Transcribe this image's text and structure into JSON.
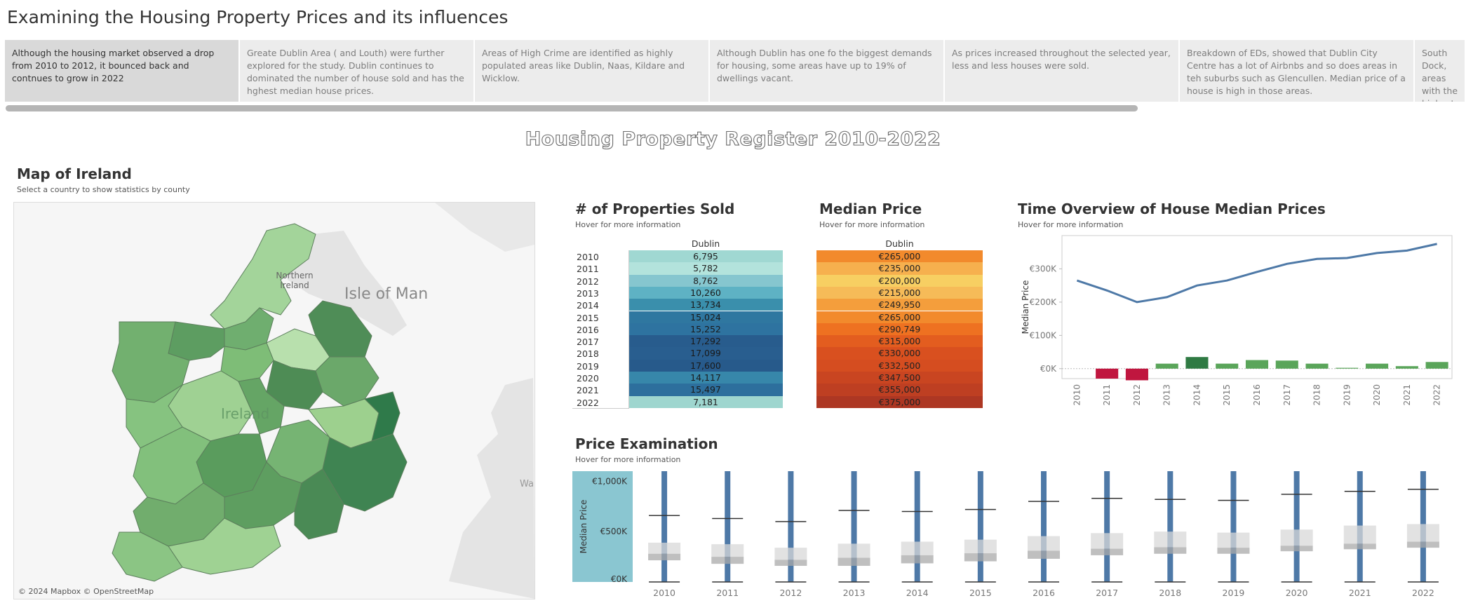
{
  "story": {
    "title": "Examining the Housing Property Prices and its influences",
    "points": [
      "Although the housing market observed a drop from 2010 to  2012, it bounced back and contnues to grow in 2022",
      "Greate Dublin Area ( and Louth) were further explored for the study. Dublin continues to dominated the number of house sold and has the hghest median house prices.",
      "Areas of High Crime are identified as highly populated areas like Dublin, Naas, Kildare and Wicklow.",
      "Although Dublin has one fo the biggest demands for housing, some areas have up to 19% of dwellings vacant.",
      "As prices increased throughout the selected year, less and less houses were sold.",
      "Breakdown of EDs, showed that Dublin City Centre has a lot of Airbnbs and so does areas in teh suburbs such as Glencullen. Median price of a house is high in those areas.",
      "South Dock, areas with the highest n.."
    ],
    "active_index": 0
  },
  "dashboard": {
    "title": "Housing Property Register 2010-2022"
  },
  "map": {
    "title": "Map of Ireland",
    "subtitle": "Select a country to show statistics by county",
    "labels": {
      "ni": "Northern Ireland",
      "iom": "Isle of Man",
      "ireland": "Ireland",
      "wales": "Wa"
    },
    "attribution": "© 2024 Mapbox © OpenStreetMap"
  },
  "properties_sold": {
    "title": "# of Properties Sold",
    "subtitle": "Hover for more information",
    "column": "Dublin",
    "rows": [
      {
        "year": "2010",
        "value": "6,795",
        "color": "#a0d8d2"
      },
      {
        "year": "2011",
        "value": "5,782",
        "color": "#b3e3dc"
      },
      {
        "year": "2012",
        "value": "8,762",
        "color": "#86c6cf"
      },
      {
        "year": "2013",
        "value": "10,260",
        "color": "#5eb2c4"
      },
      {
        "year": "2014",
        "value": "13,734",
        "color": "#3a8fac"
      },
      {
        "year": "2015",
        "value": "15,024",
        "color": "#2f77a0"
      },
      {
        "year": "2016",
        "value": "15,252",
        "color": "#2e73a0"
      },
      {
        "year": "2017",
        "value": "17,292",
        "color": "#285c8d"
      },
      {
        "year": "2018",
        "value": "17,099",
        "color": "#295e8f"
      },
      {
        "year": "2019",
        "value": "17,600",
        "color": "#275a8b"
      },
      {
        "year": "2020",
        "value": "14,117",
        "color": "#3787aa"
      },
      {
        "year": "2021",
        "value": "15,497",
        "color": "#2d6f9d"
      },
      {
        "year": "2022",
        "value": "7,181",
        "color": "#9ed6cf"
      }
    ]
  },
  "median_price": {
    "title": "Median Price",
    "subtitle": "Hover for more information",
    "column": "Dublin",
    "rows": [
      {
        "value": "€265,000",
        "color": "#f28a2c"
      },
      {
        "value": "€235,000",
        "color": "#f6b04e"
      },
      {
        "value": "€200,000",
        "color": "#f7cf62"
      },
      {
        "value": "€215,000",
        "color": "#f6bb58"
      },
      {
        "value": "€249,950",
        "color": "#f49e3c"
      },
      {
        "value": "€265,000",
        "color": "#f28a2c"
      },
      {
        "value": "€290,749",
        "color": "#ee7121"
      },
      {
        "value": "€315,000",
        "color": "#e35d1f"
      },
      {
        "value": "€330,000",
        "color": "#d9501f"
      },
      {
        "value": "€332,500",
        "color": "#d54d20"
      },
      {
        "value": "€347,500",
        "color": "#c94521"
      },
      {
        "value": "€355,000",
        "color": "#be3f22"
      },
      {
        "value": "€375,000",
        "color": "#ad3723"
      }
    ]
  },
  "time_overview": {
    "title": "Time Overview of House Median Prices",
    "subtitle": "Hover for more information",
    "ylabel": "Median Price",
    "yticks": [
      "€300K",
      "€200K",
      "€100K",
      "€0K"
    ]
  },
  "price_exam": {
    "title": "Price Examination",
    "subtitle": "Hover for more information",
    "ylabel": "Median Price",
    "yticks": [
      "€1,000K",
      "€500K",
      "€0K"
    ]
  },
  "chart_data": [
    {
      "type": "line",
      "title": "Time Overview of House Median Prices",
      "ylabel": "Median Price",
      "x": [
        "2010",
        "2011",
        "2012",
        "2013",
        "2014",
        "2015",
        "2016",
        "2017",
        "2018",
        "2019",
        "2020",
        "2021",
        "2022"
      ],
      "series": [
        {
          "values": [
            265000,
            235000,
            200000,
            215000,
            249950,
            265000,
            290749,
            315000,
            330000,
            332500,
            347500,
            355000,
            375000
          ]
        }
      ],
      "change": [
        0,
        -30000,
        -35000,
        15000,
        34950,
        15050,
        25749,
        24251,
        15000,
        2500,
        15000,
        7500,
        20000
      ],
      "ylim": [
        -30000,
        400000
      ],
      "colors": {
        "line": "#4e79a7",
        "bar_pos": "#5aa55a",
        "bar_neg": "#c0163f",
        "bar_strong": "#2f7a43"
      }
    },
    {
      "type": "box",
      "title": "Price Examination",
      "ylabel": "Median Price",
      "categories": [
        "2010",
        "2011",
        "2012",
        "2013",
        "2014",
        "2015",
        "2016",
        "2017",
        "2018",
        "2019",
        "2020",
        "2021",
        "2022"
      ],
      "whisker_high": [
        660000,
        630000,
        600000,
        710000,
        700000,
        720000,
        800000,
        830000,
        820000,
        810000,
        870000,
        900000,
        920000
      ],
      "q3": [
        390000,
        375000,
        340000,
        380000,
        400000,
        420000,
        455000,
        485000,
        500000,
        490000,
        520000,
        560000,
        575000
      ],
      "median": [
        280000,
        250000,
        220000,
        240000,
        265000,
        285000,
        310000,
        330000,
        345000,
        340000,
        360000,
        380000,
        400000
      ],
      "q1": [
        215000,
        180000,
        160000,
        160000,
        185000,
        205000,
        230000,
        265000,
        280000,
        280000,
        305000,
        325000,
        340000
      ],
      "ylim": [
        0,
        1100000
      ]
    }
  ]
}
